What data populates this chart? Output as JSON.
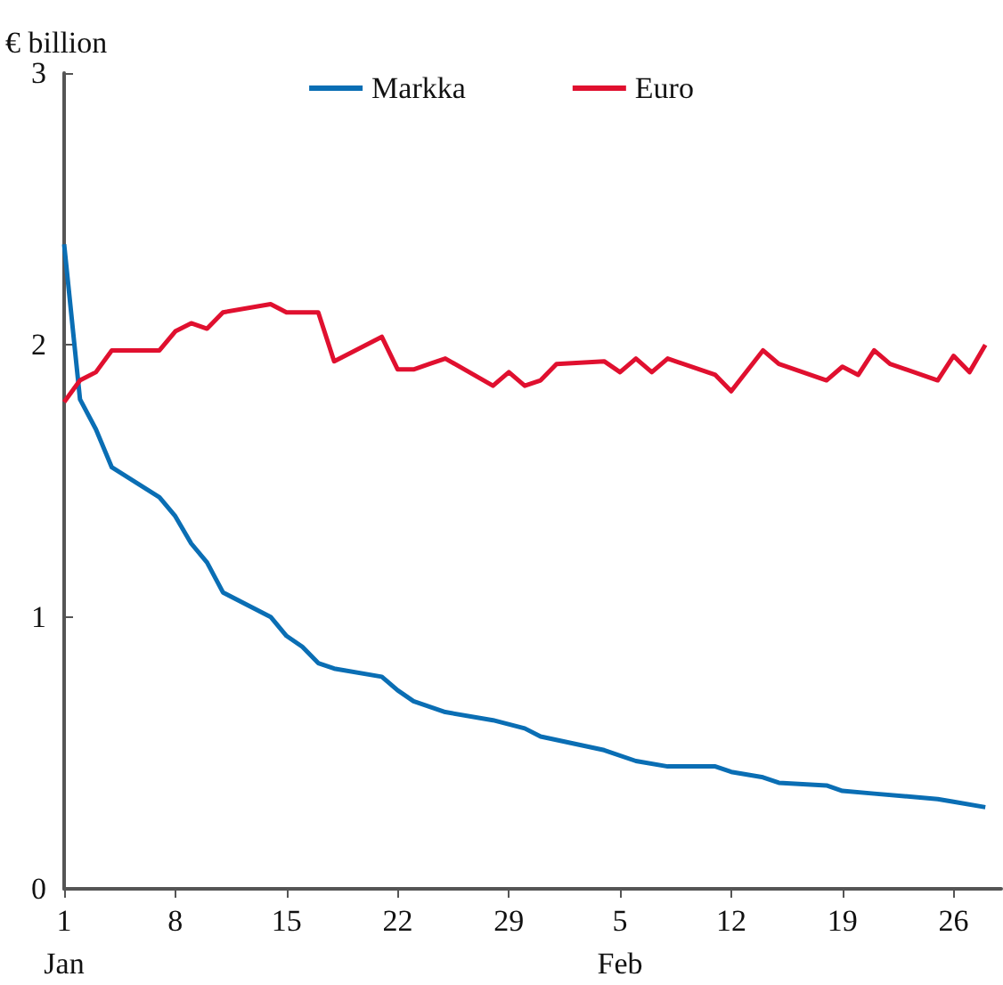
{
  "chart_data": {
    "type": "line",
    "ylabel": "€ billion",
    "xlim": [
      "--01-01",
      "--03-01"
    ],
    "xticks": [
      {
        "value": "--01-01",
        "label": "1\nJan"
      },
      {
        "value": "--01-08",
        "label": "8"
      },
      {
        "value": "--01-15",
        "label": "15"
      },
      {
        "value": "--01-22",
        "label": "22"
      },
      {
        "value": "--01-29",
        "label": "29"
      },
      {
        "value": "--02-05",
        "label": "5\nFeb"
      },
      {
        "value": "--02-12",
        "label": "12"
      },
      {
        "value": "--02-19",
        "label": "19"
      },
      {
        "value": "--02-26",
        "label": "26"
      }
    ],
    "ylim": [
      0,
      3
    ],
    "yticks": [
      0,
      1,
      2,
      3
    ],
    "grid": false,
    "legend": "top",
    "marker": "none",
    "line_style": "solid",
    "series": [
      {
        "name": "Markka",
        "color": "#0a6eb4",
        "x": [
          "--01-01",
          "--01-02",
          "--01-03",
          "--01-04",
          "--01-07",
          "--01-08",
          "--01-09",
          "--01-10",
          "--01-11",
          "--01-14",
          "--01-15",
          "--01-16",
          "--01-17",
          "--01-18",
          "--01-21",
          "--01-22",
          "--01-23",
          "--01-25",
          "--01-28",
          "--01-30",
          "--01-31",
          "--02-04",
          "--02-06",
          "--02-08",
          "--02-11",
          "--02-12",
          "--02-14",
          "--02-15",
          "--02-18",
          "--02-19",
          "--02-21",
          "--02-25",
          "--02-26",
          "--02-28"
        ],
        "values": [
          2.37,
          1.8,
          1.69,
          1.55,
          1.44,
          1.37,
          1.27,
          1.2,
          1.09,
          1.0,
          0.93,
          0.89,
          0.83,
          0.81,
          0.78,
          0.73,
          0.69,
          0.65,
          0.62,
          0.59,
          0.56,
          0.51,
          0.47,
          0.45,
          0.45,
          0.43,
          0.41,
          0.39,
          0.38,
          0.36,
          0.35,
          0.33,
          0.32,
          0.3
        ]
      },
      {
        "name": "Euro",
        "color": "#e0102f",
        "x": [
          "--01-01",
          "--01-02",
          "--01-03",
          "--01-04",
          "--01-07",
          "--01-08",
          "--01-09",
          "--01-10",
          "--01-11",
          "--01-14",
          "--01-15",
          "--01-17",
          "--01-18",
          "--01-21",
          "--01-22",
          "--01-23",
          "--01-24",
          "--01-25",
          "--01-28",
          "--01-29",
          "--01-30",
          "--01-31",
          "--02-01",
          "--02-04",
          "--02-05",
          "--02-06",
          "--02-07",
          "--02-08",
          "--02-11",
          "--02-12",
          "--02-14",
          "--02-15",
          "--02-18",
          "--02-19",
          "--02-20",
          "--02-21",
          "--02-22",
          "--02-25",
          "--02-26",
          "--02-27",
          "--02-28"
        ],
        "values": [
          1.79,
          1.87,
          1.9,
          1.98,
          1.98,
          2.05,
          2.08,
          2.06,
          2.12,
          2.15,
          2.12,
          2.12,
          1.94,
          2.03,
          1.91,
          1.91,
          1.93,
          1.95,
          1.85,
          1.9,
          1.85,
          1.87,
          1.93,
          1.94,
          1.9,
          1.95,
          1.9,
          1.95,
          1.89,
          1.83,
          1.98,
          1.93,
          1.87,
          1.92,
          1.89,
          1.98,
          1.93,
          1.87,
          1.96,
          1.9,
          2.0
        ]
      }
    ]
  }
}
